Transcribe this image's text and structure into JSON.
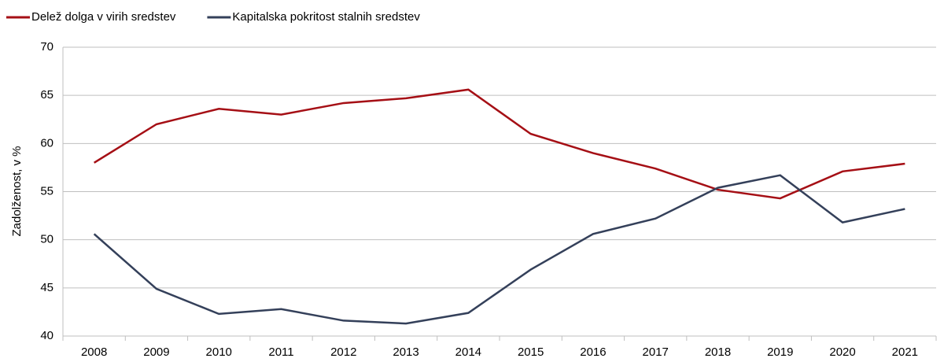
{
  "chart_data": {
    "type": "line",
    "ylabel": "Zadolženost, v %",
    "categories": [
      "2008",
      "2009",
      "2010",
      "2011",
      "2012",
      "2013",
      "2014",
      "2015",
      "2016",
      "2017",
      "2018",
      "2019",
      "2020",
      "2021"
    ],
    "series": [
      {
        "name": "Delež dolga v virih sredstev",
        "color": "#a50f15",
        "values": [
          58.0,
          62.0,
          63.6,
          63.0,
          64.2,
          64.7,
          65.6,
          61.0,
          59.0,
          57.4,
          55.2,
          54.3,
          57.1,
          57.9
        ]
      },
      {
        "name": "Kapitalska pokritost stalnih sredstev",
        "color": "#34405a",
        "values": [
          50.6,
          44.9,
          42.3,
          42.8,
          41.6,
          41.3,
          42.4,
          46.9,
          50.6,
          52.2,
          55.4,
          56.7,
          51.8,
          53.2
        ]
      }
    ],
    "ylim": [
      40,
      70
    ],
    "yticks": [
      40,
      45,
      50,
      55,
      60,
      65,
      70
    ],
    "grid": true,
    "legend": "top-left"
  }
}
